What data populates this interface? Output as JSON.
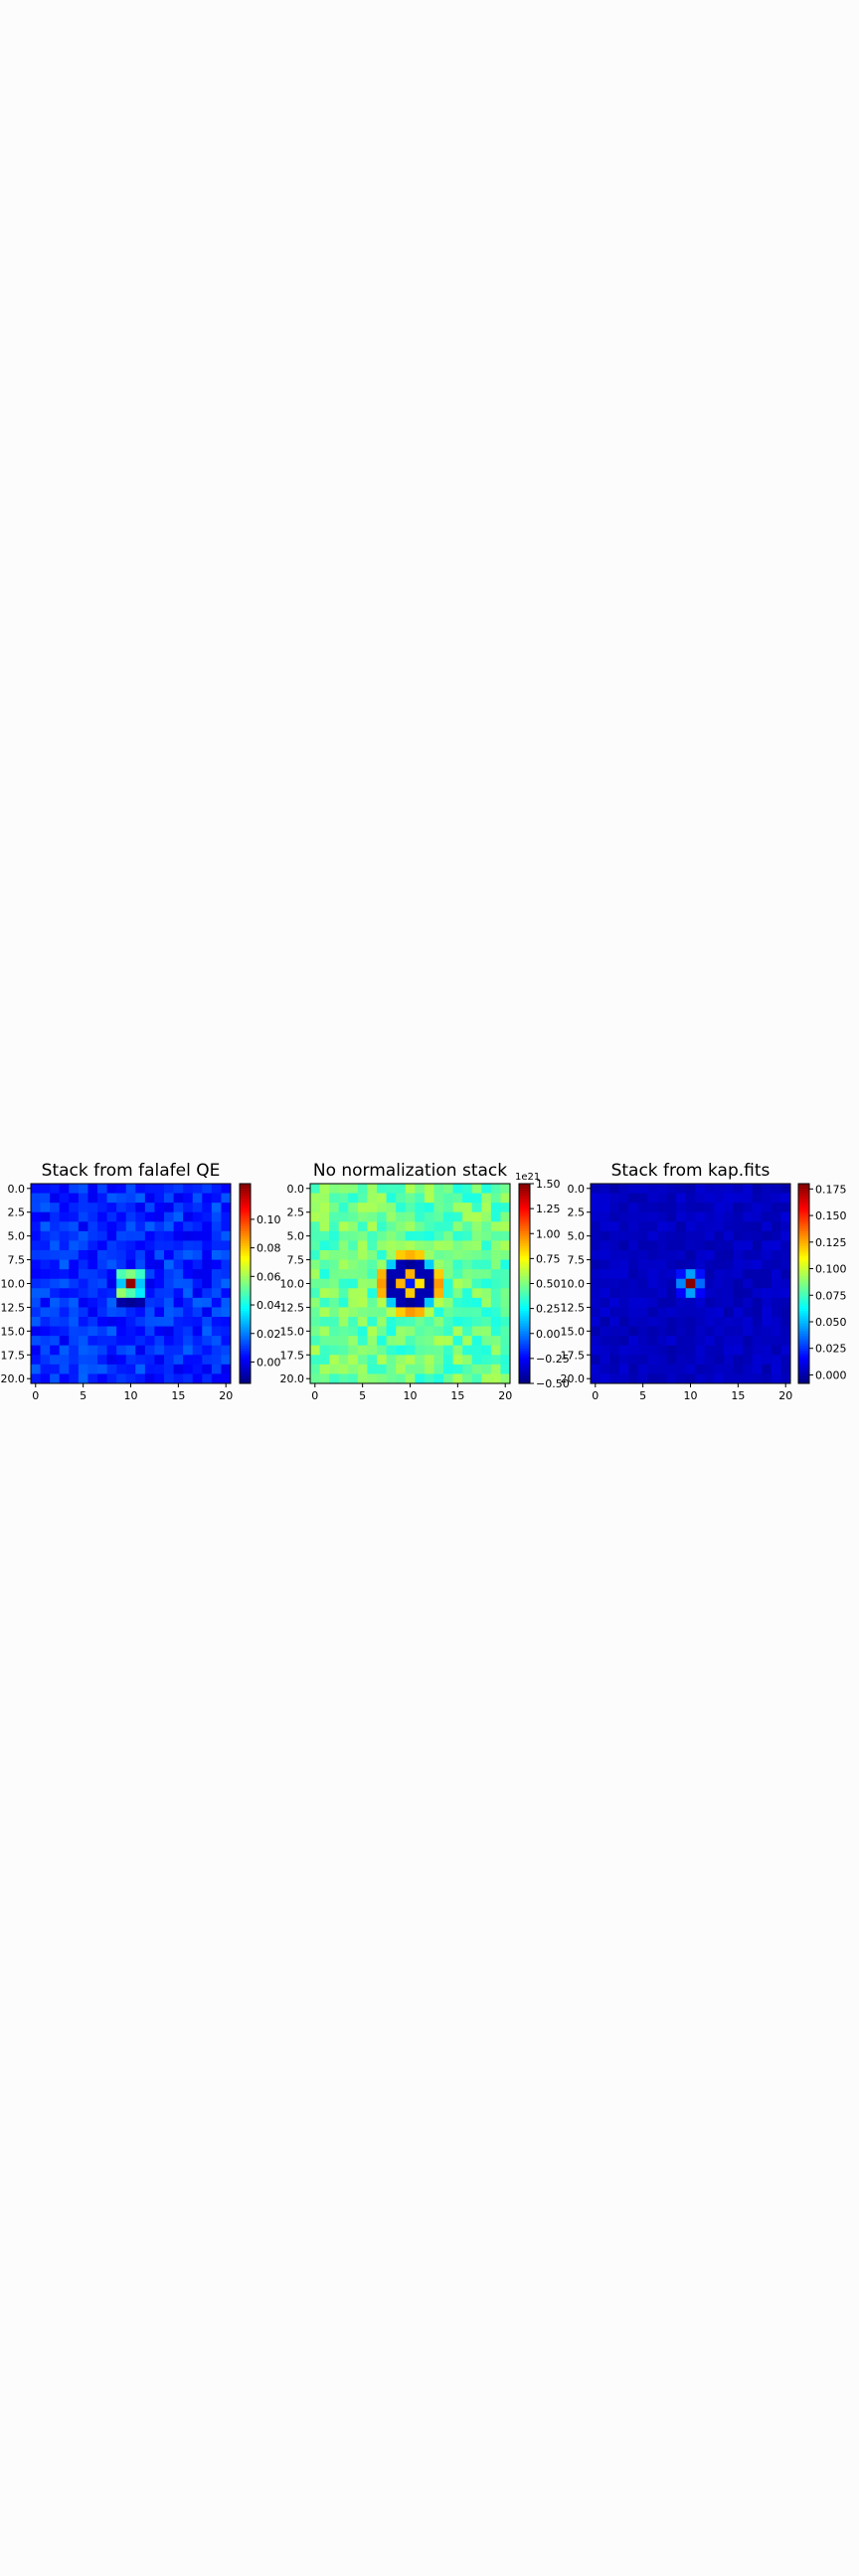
{
  "chart_data": [
    {
      "type": "heatmap",
      "title": "Stack from falafel QE",
      "grid": false,
      "colormap": "jet",
      "shape": [
        21,
        21
      ],
      "xlim": [
        -0.5,
        20.5
      ],
      "ylim": [
        20.5,
        -0.5
      ],
      "x_ticks": [
        0,
        5,
        10,
        15,
        20
      ],
      "x_tick_labels": [
        "0",
        "5",
        "10",
        "15",
        "20"
      ],
      "y_ticks": [
        0,
        2.5,
        5,
        7.5,
        10,
        12.5,
        15,
        17.5,
        20
      ],
      "y_tick_labels": [
        "0.0",
        "2.5",
        "5.0",
        "7.5",
        "10.0",
        "12.5",
        "15.0",
        "17.5",
        "20.0"
      ],
      "colorbar": {
        "vmin": -0.015,
        "vmax": 0.125,
        "ticks": [
          0.0,
          0.02,
          0.04,
          0.06,
          0.08,
          0.1
        ],
        "tick_labels": [
          "0.00",
          "0.02",
          "0.04",
          "0.06",
          "0.08",
          "0.10"
        ],
        "offset_label": ""
      },
      "background": 0.008,
      "noise": 0.008,
      "seed": 11,
      "profile": [
        {
          "dx": 0,
          "dy": 0,
          "v": 0.122
        },
        {
          "dx": -1,
          "dy": 0,
          "v": 0.03
        },
        {
          "dx": 1,
          "dy": 0,
          "v": 0.03
        },
        {
          "dx": 0,
          "dy": -1,
          "v": 0.055
        },
        {
          "dx": 0,
          "dy": 1,
          "v": 0.048
        },
        {
          "dx": -1,
          "dy": -1,
          "v": 0.048
        },
        {
          "dx": 1,
          "dy": -1,
          "v": 0.045
        },
        {
          "dx": -1,
          "dy": 1,
          "v": 0.058
        },
        {
          "dx": 1,
          "dy": 1,
          "v": 0.035
        },
        {
          "dx": 0,
          "dy": 2,
          "v": -0.012
        },
        {
          "dx": -1,
          "dy": 2,
          "v": -0.01
        },
        {
          "dx": 1,
          "dy": 2,
          "v": -0.01
        },
        {
          "dx": -2,
          "dy": 0,
          "v": 0.0
        },
        {
          "dx": 2,
          "dy": 0,
          "v": 0.0
        }
      ]
    },
    {
      "type": "heatmap",
      "title": "No normalization stack",
      "grid": false,
      "colormap": "jet",
      "shape": [
        21,
        21
      ],
      "xlim": [
        -0.5,
        20.5
      ],
      "ylim": [
        20.5,
        -0.5
      ],
      "x_ticks": [
        0,
        5,
        10,
        15,
        20
      ],
      "x_tick_labels": [
        "0",
        "5",
        "10",
        "15",
        "20"
      ],
      "y_ticks": [
        0,
        2.5,
        5,
        7.5,
        10,
        12.5,
        15,
        17.5,
        20
      ],
      "y_tick_labels": [
        "0.0",
        "2.5",
        "5.0",
        "7.5",
        "10.0",
        "12.5",
        "15.0",
        "17.5",
        "20.0"
      ],
      "colorbar": {
        "vmin": -0.5,
        "vmax": 1.5,
        "ticks": [
          -0.5,
          -0.25,
          0.0,
          0.25,
          0.5,
          0.75,
          1.0,
          1.25,
          1.5
        ],
        "tick_labels": [
          "−0.50",
          "−0.25",
          "0.00",
          "0.25",
          "0.50",
          "0.75",
          "1.00",
          "1.25",
          "1.50"
        ],
        "offset_label": "1e21"
      },
      "background": 0.45,
      "noise": 0.15,
      "seed": 29,
      "profile": [
        {
          "dx": 0,
          "dy": 0,
          "v": -0.2
        },
        {
          "dx": -1,
          "dy": 0,
          "v": 0.9
        },
        {
          "dx": 1,
          "dy": 0,
          "v": 0.8
        },
        {
          "dx": 0,
          "dy": -1,
          "v": 0.9
        },
        {
          "dx": 0,
          "dy": 1,
          "v": 0.85
        },
        {
          "dx": -1,
          "dy": -1,
          "v": -0.4
        },
        {
          "dx": 1,
          "dy": -1,
          "v": -0.4
        },
        {
          "dx": -1,
          "dy": 1,
          "v": -0.4
        },
        {
          "dx": 1,
          "dy": 1,
          "v": -0.4
        },
        {
          "dx": -2,
          "dy": 0,
          "v": -0.45
        },
        {
          "dx": 2,
          "dy": 0,
          "v": -0.45
        },
        {
          "dx": 0,
          "dy": -2,
          "v": -0.45
        },
        {
          "dx": 0,
          "dy": 2,
          "v": -0.45
        },
        {
          "dx": -2,
          "dy": -1,
          "v": -0.4
        },
        {
          "dx": 2,
          "dy": -1,
          "v": -0.4
        },
        {
          "dx": -2,
          "dy": 1,
          "v": -0.4
        },
        {
          "dx": 2,
          "dy": 1,
          "v": -0.4
        },
        {
          "dx": -1,
          "dy": -2,
          "v": -0.4
        },
        {
          "dx": 1,
          "dy": -2,
          "v": -0.4
        },
        {
          "dx": -1,
          "dy": 2,
          "v": -0.4
        },
        {
          "dx": 1,
          "dy": 2,
          "v": -0.4
        },
        {
          "dx": -2,
          "dy": -2,
          "v": 0.15
        },
        {
          "dx": 2,
          "dy": -2,
          "v": 0.15
        },
        {
          "dx": -2,
          "dy": 2,
          "v": 0.15
        },
        {
          "dx": 2,
          "dy": 2,
          "v": 0.15
        },
        {
          "dx": -3,
          "dy": -1,
          "v": 0.9
        },
        {
          "dx": -3,
          "dy": 0,
          "v": 0.95
        },
        {
          "dx": -3,
          "dy": 1,
          "v": 0.9
        },
        {
          "dx": 3,
          "dy": -1,
          "v": 0.85
        },
        {
          "dx": 3,
          "dy": 0,
          "v": 0.95
        },
        {
          "dx": 3,
          "dy": 1,
          "v": 0.9
        },
        {
          "dx": -1,
          "dy": -3,
          "v": 0.85
        },
        {
          "dx": 0,
          "dy": -3,
          "v": 0.9
        },
        {
          "dx": 1,
          "dy": -3,
          "v": 0.85
        },
        {
          "dx": -1,
          "dy": 3,
          "v": 0.85
        },
        {
          "dx": 0,
          "dy": 3,
          "v": 0.95
        },
        {
          "dx": 1,
          "dy": 3,
          "v": 0.9
        },
        {
          "dx": -2,
          "dy": -3,
          "v": 0.55
        },
        {
          "dx": 2,
          "dy": -3,
          "v": 0.55
        },
        {
          "dx": -2,
          "dy": 3,
          "v": 0.6
        },
        {
          "dx": 2,
          "dy": 3,
          "v": 0.6
        },
        {
          "dx": -3,
          "dy": -2,
          "v": 0.55
        },
        {
          "dx": 3,
          "dy": -2,
          "v": 0.55
        },
        {
          "dx": -3,
          "dy": 2,
          "v": 0.6
        },
        {
          "dx": 3,
          "dy": 2,
          "v": 0.6
        }
      ]
    },
    {
      "type": "heatmap",
      "title": "Stack from kap.fits",
      "grid": false,
      "colormap": "jet",
      "shape": [
        21,
        21
      ],
      "xlim": [
        -0.5,
        20.5
      ],
      "ylim": [
        20.5,
        -0.5
      ],
      "x_ticks": [
        0,
        5,
        10,
        15,
        20
      ],
      "x_tick_labels": [
        "0",
        "5",
        "10",
        "15",
        "20"
      ],
      "y_ticks": [
        0,
        2.5,
        5,
        7.5,
        10,
        12.5,
        15,
        17.5,
        20
      ],
      "y_tick_labels": [
        "0.0",
        "2.5",
        "5.0",
        "7.5",
        "10.0",
        "12.5",
        "15.0",
        "17.5",
        "20.0"
      ],
      "colorbar": {
        "vmin": -0.008,
        "vmax": 0.18,
        "ticks": [
          0.0,
          0.025,
          0.05,
          0.075,
          0.1,
          0.125,
          0.15,
          0.175
        ],
        "tick_labels": [
          "0.000",
          "0.025",
          "0.050",
          "0.075",
          "0.100",
          "0.125",
          "0.150",
          "0.175"
        ],
        "offset_label": ""
      },
      "background": 0.004,
      "noise": 0.004,
      "seed": 47,
      "profile": [
        {
          "dx": 0,
          "dy": 0,
          "v": 0.178
        },
        {
          "dx": -1,
          "dy": 0,
          "v": 0.04
        },
        {
          "dx": 1,
          "dy": 0,
          "v": 0.035
        },
        {
          "dx": 0,
          "dy": -1,
          "v": 0.045
        },
        {
          "dx": 0,
          "dy": 1,
          "v": 0.045
        },
        {
          "dx": -1,
          "dy": -1,
          "v": 0.018
        },
        {
          "dx": 1,
          "dy": -1,
          "v": 0.018
        },
        {
          "dx": -1,
          "dy": 1,
          "v": 0.015
        },
        {
          "dx": 1,
          "dy": 1,
          "v": 0.015
        }
      ]
    }
  ]
}
